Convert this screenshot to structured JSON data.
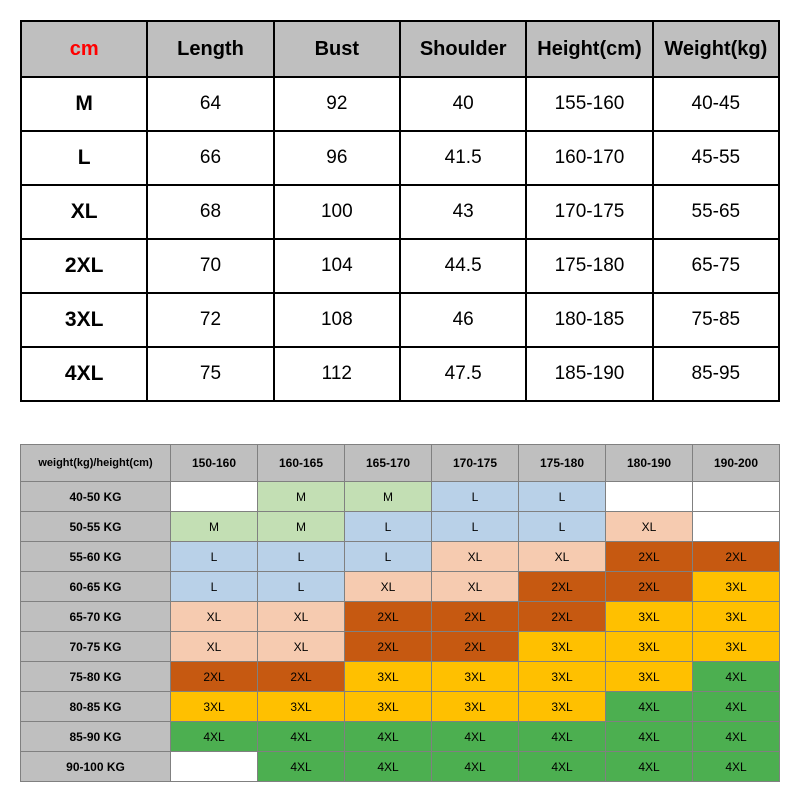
{
  "colors": {
    "header_gray": "#bfbfbf",
    "white": "#ffffff",
    "m_green": "#c3dfb4",
    "l_blue": "#b9d1e8",
    "xl_peach": "#f6cbb0",
    "2xl_brown": "#c65911",
    "3xl_gold": "#ffc000",
    "4xl_green": "#4caf50",
    "border1": "#000000",
    "border2": "#808080",
    "text": "#000000",
    "cm_red": "#ff0000"
  },
  "table1": {
    "columns": [
      "cm",
      "Length",
      "Bust",
      "Shoulder",
      "Height(cm)",
      "Weight(kg)"
    ],
    "rows": [
      [
        "M",
        "64",
        "92",
        "40",
        "155-160",
        "40-45"
      ],
      [
        "L",
        "66",
        "96",
        "41.5",
        "160-170",
        "45-55"
      ],
      [
        "XL",
        "68",
        "100",
        "43",
        "170-175",
        "55-65"
      ],
      [
        "2XL",
        "70",
        "104",
        "44.5",
        "175-180",
        "65-75"
      ],
      [
        "3XL",
        "72",
        "108",
        "46",
        "180-185",
        "75-85"
      ],
      [
        "4XL",
        "75",
        "112",
        "47.5",
        "185-190",
        "85-95"
      ]
    ]
  },
  "table2": {
    "corner": "weight(kg)/height(cm)",
    "columns": [
      "150-160",
      "160-165",
      "165-170",
      "170-175",
      "175-180",
      "180-190",
      "190-200"
    ],
    "row_labels": [
      "40-50 KG",
      "50-55 KG",
      "55-60 KG",
      "60-65 KG",
      "65-70 KG",
      "70-75 KG",
      "75-80 KG",
      "80-85 KG",
      "85-90 KG",
      "90-100 KG"
    ],
    "cells": [
      [
        "",
        "M",
        "M",
        "L",
        "L",
        "",
        ""
      ],
      [
        "M",
        "M",
        "L",
        "L",
        "L",
        "XL",
        ""
      ],
      [
        "L",
        "L",
        "L",
        "XL",
        "XL",
        "2XL",
        "2XL"
      ],
      [
        "L",
        "L",
        "XL",
        "XL",
        "2XL",
        "2XL",
        "3XL"
      ],
      [
        "XL",
        "XL",
        "2XL",
        "2XL",
        "2XL",
        "3XL",
        "3XL"
      ],
      [
        "XL",
        "XL",
        "2XL",
        "2XL",
        "3XL",
        "3XL",
        "3XL"
      ],
      [
        "2XL",
        "2XL",
        "3XL",
        "3XL",
        "3XL",
        "3XL",
        "4XL"
      ],
      [
        "3XL",
        "3XL",
        "3XL",
        "3XL",
        "3XL",
        "4XL",
        "4XL"
      ],
      [
        "4XL",
        "4XL",
        "4XL",
        "4XL",
        "4XL",
        "4XL",
        "4XL"
      ],
      [
        "",
        "4XL",
        "4XL",
        "4XL",
        "4XL",
        "4XL",
        "4XL"
      ]
    ],
    "cell_color_key": {
      "": "white",
      "M": "m_green",
      "L": "l_blue",
      "XL": "xl_peach",
      "2XL": "2xl_brown",
      "3XL": "3xl_gold",
      "4XL": "4xl_green"
    }
  }
}
